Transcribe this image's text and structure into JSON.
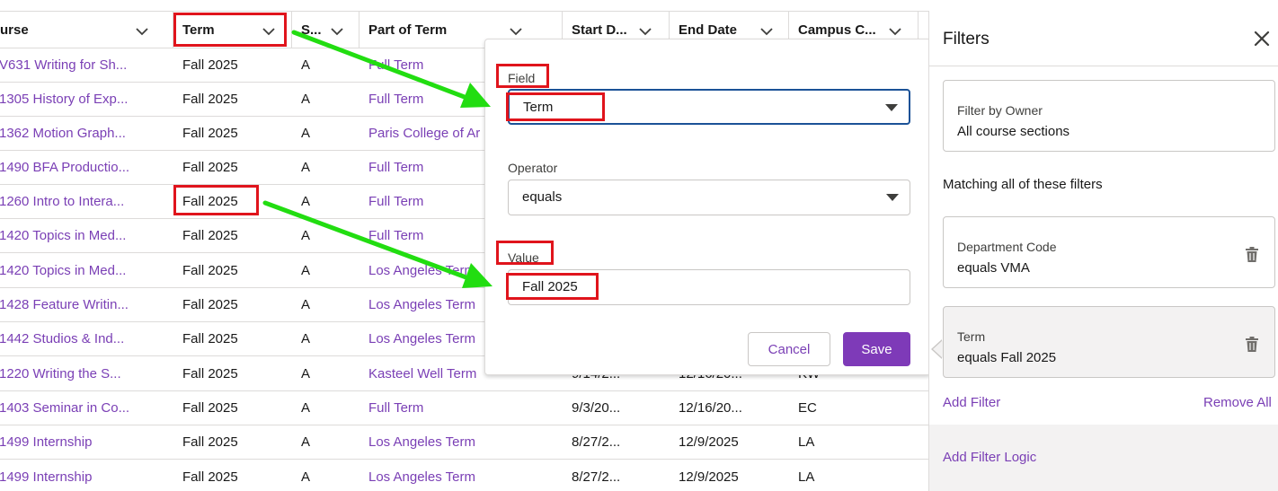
{
  "table": {
    "columns": [
      {
        "key": "course",
        "label": "urse"
      },
      {
        "key": "term",
        "label": "Term"
      },
      {
        "key": "status",
        "label": "S..."
      },
      {
        "key": "part",
        "label": "Part of Term"
      },
      {
        "key": "start",
        "label": "Start D..."
      },
      {
        "key": "end",
        "label": "End Date"
      },
      {
        "key": "campus",
        "label": "Campus C..."
      }
    ],
    "rows": [
      {
        "course": "V631 Writing for Sh...",
        "term": "Fall 2025",
        "status": "A",
        "part": "Full Term",
        "start": "",
        "end": "",
        "campus": ""
      },
      {
        "course": "1305 History of Exp...",
        "term": "Fall 2025",
        "status": "A",
        "part": "Full Term",
        "start": "",
        "end": "",
        "campus": ""
      },
      {
        "course": "1362 Motion Graph...",
        "term": "Fall 2025",
        "status": "A",
        "part": "Paris College of Ar",
        "start": "",
        "end": "",
        "campus": ""
      },
      {
        "course": "1490 BFA Productio...",
        "term": "Fall 2025",
        "status": "A",
        "part": "Full Term",
        "start": "",
        "end": "",
        "campus": ""
      },
      {
        "course": "1260 Intro to Intera...",
        "term": "Fall 2025",
        "status": "A",
        "part": "Full Term",
        "start": "",
        "end": "",
        "campus": ""
      },
      {
        "course": "1420 Topics in Med...",
        "term": "Fall 2025",
        "status": "A",
        "part": "Full Term",
        "start": "",
        "end": "",
        "campus": ""
      },
      {
        "course": "1420 Topics in Med...",
        "term": "Fall 2025",
        "status": "A",
        "part": "Los Angeles Term",
        "start": "",
        "end": "",
        "campus": ""
      },
      {
        "course": "1428 Feature Writin...",
        "term": "Fall 2025",
        "status": "A",
        "part": "Los Angeles Term",
        "start": "",
        "end": "",
        "campus": ""
      },
      {
        "course": "1442 Studios & Ind...",
        "term": "Fall 2025",
        "status": "A",
        "part": "Los Angeles Term",
        "start": "",
        "end": "",
        "campus": ""
      },
      {
        "course": "1220 Writing the S...",
        "term": "Fall 2025",
        "status": "A",
        "part": "Kasteel Well Term",
        "start": "9/14/2...",
        "end": "12/16/20...",
        "campus": "KW"
      },
      {
        "course": "1403 Seminar in Co...",
        "term": "Fall 2025",
        "status": "A",
        "part": "Full Term",
        "start": "9/3/20...",
        "end": "12/16/20...",
        "campus": "EC"
      },
      {
        "course": "1499 Internship",
        "term": "Fall 2025",
        "status": "A",
        "part": "Los Angeles Term",
        "start": "8/27/2...",
        "end": "12/9/2025",
        "campus": "LA"
      },
      {
        "course": "1499 Internship",
        "term": "Fall 2025",
        "status": "A",
        "part": "Los Angeles Term",
        "start": "8/27/2...",
        "end": "12/9/2025",
        "campus": "LA"
      }
    ]
  },
  "popover": {
    "field_label": "Field",
    "field_value": "Term",
    "operator_label": "Operator",
    "operator_value": "equals",
    "value_label": "Value",
    "value_value": "Fall 2025",
    "cancel_label": "Cancel",
    "save_label": "Save"
  },
  "filters_panel": {
    "title": "Filters",
    "owner_filter": {
      "label": "Filter by Owner",
      "value": "All course sections"
    },
    "matching_label": "Matching all of these filters",
    "filters": [
      {
        "label": "Department Code",
        "value": "equals VMA"
      },
      {
        "label": "Term",
        "value": "equals Fall 2025"
      }
    ],
    "add_filter_label": "Add Filter",
    "remove_all_label": "Remove All",
    "add_logic_label": "Add Filter Logic"
  },
  "colors": {
    "link": "#7a3fb5",
    "save_button": "#7e3ab8",
    "focus_border": "#1b5297",
    "highlight_box": "#e0141c",
    "annotation_arrow": "#22dd11"
  },
  "icons": {
    "sort": "chevron-down-icon",
    "close": "close-icon",
    "delete": "trash-icon",
    "select_caret": "caret-down-icon"
  }
}
